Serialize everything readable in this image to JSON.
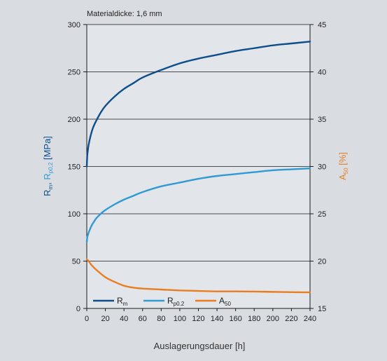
{
  "chart_data": {
    "type": "line",
    "annotation": "Materialdicke: 1,6 mm",
    "xlabel": "Auslagerungsdauer [h]",
    "ylabel_left": {
      "parts": [
        {
          "text": "R",
          "color": "#0d4e8c",
          "sub": false
        },
        {
          "text": "m",
          "color": "#0d4e8c",
          "sub": true
        },
        {
          "text": ", ",
          "color": "#0d4e8c",
          "sub": false
        },
        {
          "text": "R",
          "color": "#2f9ad4",
          "sub": false
        },
        {
          "text": "p0,2",
          "color": "#2f9ad4",
          "sub": true
        },
        {
          "text": " [MPa]",
          "color": "#0d4e8c",
          "sub": false
        }
      ]
    },
    "ylabel_right": {
      "parts": [
        {
          "text": "A",
          "color": "#ea7d22",
          "sub": false
        },
        {
          "text": "50",
          "color": "#ea7d22",
          "sub": true
        },
        {
          "text": " [%]",
          "color": "#ea7d22",
          "sub": false
        }
      ]
    },
    "x_ticks": [
      0,
      20,
      40,
      60,
      80,
      100,
      120,
      140,
      160,
      180,
      200,
      220,
      240
    ],
    "y_left_ticks": [
      0,
      50,
      100,
      150,
      200,
      250,
      300
    ],
    "y_right_ticks": [
      15,
      20,
      25,
      30,
      35,
      40,
      45
    ],
    "xlim": [
      0,
      240
    ],
    "ylim_left": [
      0,
      300
    ],
    "ylim_right": [
      15,
      45
    ],
    "grid": "horizontal",
    "legend_placement": "bottom-left",
    "series": [
      {
        "name": "R",
        "name_sub": "m",
        "axis": "left",
        "color": "#0d4e8c",
        "x": [
          0,
          0.5,
          1,
          2,
          4,
          6,
          8,
          10,
          15,
          20,
          30,
          40,
          50,
          60,
          80,
          100,
          120,
          140,
          160,
          180,
          200,
          220,
          240
        ],
        "y": [
          150,
          161,
          166,
          173,
          182,
          189,
          194,
          198,
          207,
          214,
          224,
          232,
          238,
          244,
          252,
          259,
          264,
          268,
          272,
          275,
          278,
          280,
          282
        ]
      },
      {
        "name": "R",
        "name_sub": "p0.2",
        "axis": "left",
        "color": "#2f9ad4",
        "x": [
          0,
          0.5,
          1,
          2,
          4,
          6,
          8,
          10,
          15,
          20,
          30,
          40,
          50,
          60,
          80,
          100,
          120,
          140,
          160,
          180,
          200,
          220,
          240
        ],
        "y": [
          70,
          75,
          77,
          80,
          85,
          89,
          92,
          95,
          100,
          104,
          110,
          115,
          119,
          123,
          129,
          133,
          137,
          140,
          142,
          144,
          146,
          147,
          148
        ]
      },
      {
        "name": "A",
        "name_sub": "50",
        "axis": "right",
        "color": "#ea7d22",
        "x": [
          0,
          1,
          2,
          5,
          10,
          20,
          30,
          40,
          50,
          60,
          80,
          100,
          120,
          140,
          160,
          180,
          200,
          220,
          240
        ],
        "y": [
          20.2,
          20.1,
          20.0,
          19.6,
          19.1,
          18.3,
          17.8,
          17.4,
          17.2,
          17.1,
          17.0,
          16.9,
          16.85,
          16.8,
          16.8,
          16.78,
          16.75,
          16.72,
          16.7
        ]
      }
    ]
  }
}
